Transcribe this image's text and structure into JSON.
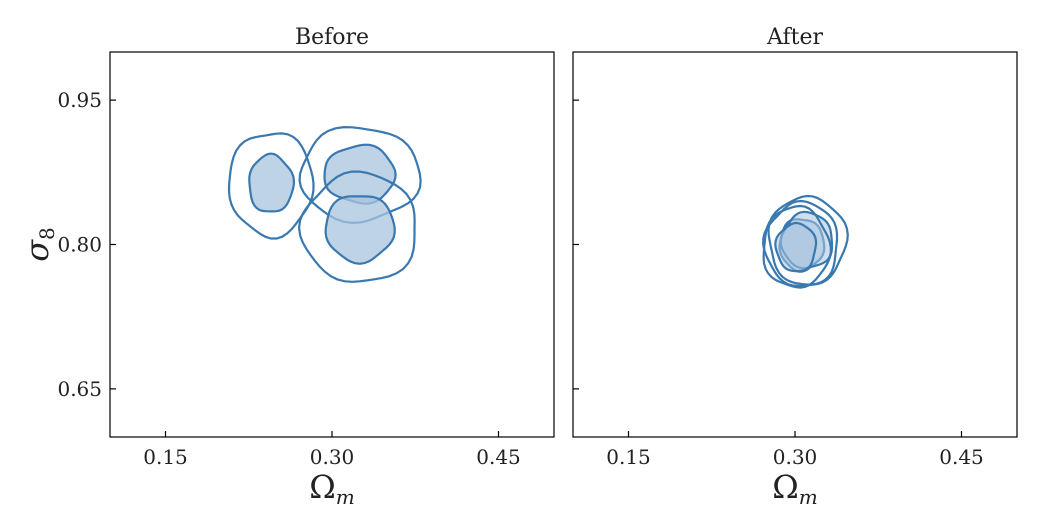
{
  "chart_data": [
    {
      "type": "contour",
      "title": "Before",
      "xlabel": "Ω",
      "xlabel_sub": "m",
      "ylabel": "σ",
      "ylabel_sub": "8",
      "xlim": [
        0.1,
        0.5
      ],
      "ylim": [
        0.6,
        1.0
      ],
      "xticks": [
        0.15,
        0.3,
        0.45
      ],
      "xtick_labels": [
        "0.15",
        "0.30",
        "0.45"
      ],
      "yticks": [
        0.65,
        0.8,
        0.95
      ],
      "ytick_labels": [
        "0.65",
        "0.80",
        "0.95"
      ],
      "show_y_tick_labels": true,
      "line_color": "#3a78b0",
      "fill_color": "#a9c4de",
      "series": [
        {
          "center": [
            0.245,
            0.863
          ],
          "inner_radius": [
            0.02,
            0.03
          ],
          "outer_radius": [
            0.038,
            0.054
          ]
        },
        {
          "center": [
            0.325,
            0.873
          ],
          "inner_radius": [
            0.032,
            0.03
          ],
          "outer_radius": [
            0.054,
            0.049
          ]
        },
        {
          "center": [
            0.325,
            0.817
          ],
          "inner_radius": [
            0.031,
            0.035
          ],
          "outer_radius": [
            0.052,
            0.057
          ]
        }
      ]
    },
    {
      "type": "contour",
      "title": "After",
      "xlabel": "Ω",
      "xlabel_sub": "m",
      "ylabel": "",
      "ylabel_sub": "",
      "xlim": [
        0.1,
        0.5
      ],
      "ylim": [
        0.6,
        1.0
      ],
      "xticks": [
        0.15,
        0.3,
        0.45
      ],
      "xtick_labels": [
        "0.15",
        "0.30",
        "0.45"
      ],
      "yticks": [
        0.65,
        0.8,
        0.95
      ],
      "ytick_labels": [
        "",
        "",
        ""
      ],
      "show_y_tick_labels": false,
      "line_color": "#3a78b0",
      "fill_color": "#a9c4de",
      "series": [
        {
          "center": [
            0.306,
            0.8
          ],
          "inner_radius": [
            0.02,
            0.027
          ],
          "outer_radius": [
            0.033,
            0.044
          ]
        },
        {
          "center": [
            0.311,
            0.804
          ],
          "inner_radius": [
            0.023,
            0.029
          ],
          "outer_radius": [
            0.035,
            0.046
          ]
        },
        {
          "center": [
            0.301,
            0.797
          ],
          "inner_radius": [
            0.018,
            0.025
          ],
          "outer_radius": [
            0.03,
            0.042
          ]
        }
      ]
    }
  ]
}
